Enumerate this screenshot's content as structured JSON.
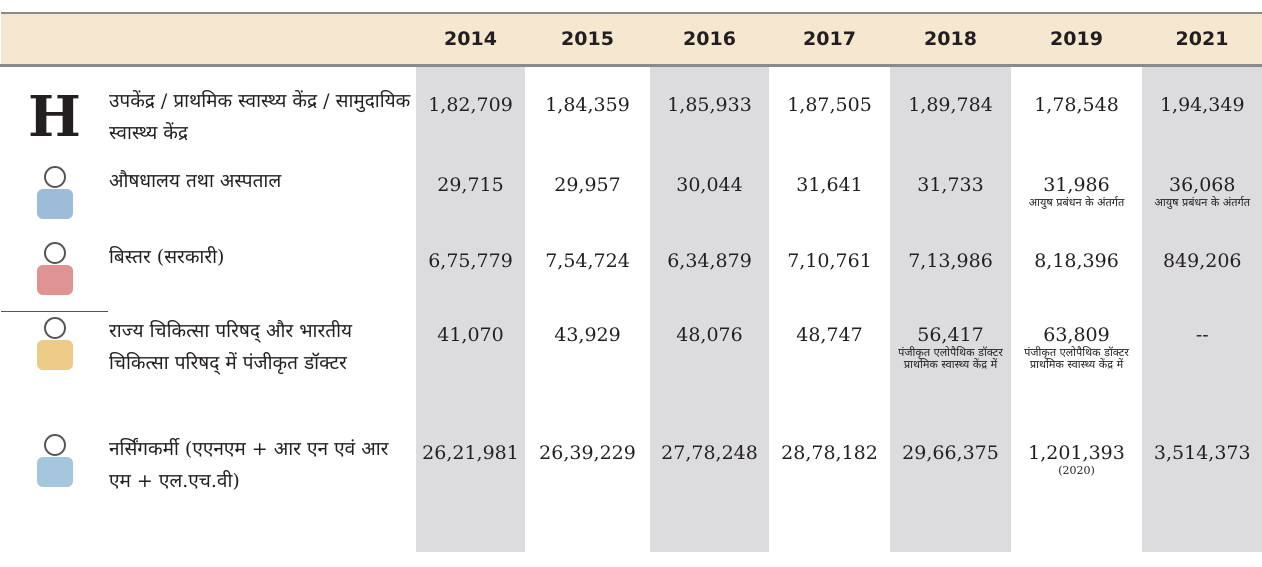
{
  "table": {
    "header": [
      "2014",
      "2015",
      "2016",
      "2017",
      "2018",
      "2019",
      "2021"
    ],
    "rows": [
      {
        "icon": "H",
        "label": "उपकेंद्र / प्राथमिक स्वास्थ्य केंद्र / सामुदायिक स्वास्थ्य केंद्र",
        "cells": [
          {
            "value": "1,82,709"
          },
          {
            "value": "1,84,359"
          },
          {
            "value": "1,85,933"
          },
          {
            "value": "1,87,505"
          },
          {
            "value": "1,89,784"
          },
          {
            "value": "1,78,548"
          },
          {
            "value": "1,94,349"
          }
        ]
      },
      {
        "label": "औषधालय तथा अस्पताल",
        "cells": [
          {
            "value": "29,715"
          },
          {
            "value": "29,957"
          },
          {
            "value": "30,044"
          },
          {
            "value": "31,641"
          },
          {
            "value": "31,733"
          },
          {
            "value": "31,986",
            "note": "आयुष प्रबंधन के अंतर्गत"
          },
          {
            "value": "36,068",
            "note": "आयुष प्रबंधन के अंतर्गत"
          }
        ]
      },
      {
        "label": "बिस्तर (सरकारी)",
        "cells": [
          {
            "value": "6,75,779"
          },
          {
            "value": "7,54,724"
          },
          {
            "value": "6,34,879"
          },
          {
            "value": "7,10,761"
          },
          {
            "value": "7,13,986"
          },
          {
            "value": "8,18,396"
          },
          {
            "value": "849,206"
          }
        ]
      },
      {
        "label": "राज्य चिकित्सा परिषद् और भारतीय चिकित्सा परिषद् में पंजीकृत डॉक्टर",
        "cells": [
          {
            "value": "41,070"
          },
          {
            "value": "43,929"
          },
          {
            "value": "48,076"
          },
          {
            "value": "48,747"
          },
          {
            "value": "56,417",
            "note": "पंजीकृत एलोपैथिक डॉक्टर प्राथमिक स्वास्थ्य केंद्र में"
          },
          {
            "value": "63,809",
            "note": "पंजीकृत एलोपैथिक डॉक्टर प्राथमिक स्वास्थ्य केंद्र में"
          },
          {
            "value": "--"
          }
        ]
      },
      {
        "label": "नर्सिंगकर्मी (एएनएम + आर एन एवं आर एम + एल.एच.वी)",
        "cells": [
          {
            "value": "26,21,981"
          },
          {
            "value": "26,39,229"
          },
          {
            "value": "27,78,248"
          },
          {
            "value": "28,78,182"
          },
          {
            "value": "29,66,375"
          },
          {
            "value": "1,201,393",
            "note": "(2020)"
          },
          {
            "value": "3,514,373"
          }
        ]
      }
    ]
  }
}
